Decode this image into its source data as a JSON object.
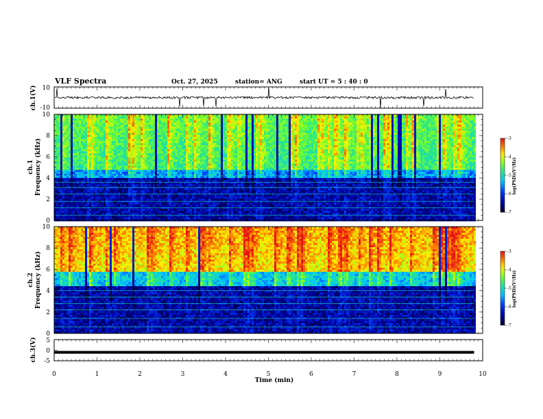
{
  "header": {
    "title": "VLF Spectra",
    "date": "Oct. 27, 2025",
    "station": "station= ANG",
    "start_ut": "start  UT  =   5  : 40 :  0"
  },
  "chart_data": [
    {
      "type": "line",
      "panel": "ch1-timeseries",
      "ylabel": "ch.1(V)",
      "ylim": [
        -10,
        10
      ],
      "ytick_labels": [
        "10",
        "-10"
      ],
      "baseline": 0,
      "xlim": [
        0,
        10
      ],
      "xtick_labels": [
        "0",
        "1",
        "2",
        "3",
        "4",
        "5",
        "6",
        "7",
        "8",
        "9",
        "10"
      ],
      "data_extent_min": 9.8,
      "color": "#000000"
    },
    {
      "type": "heatmap",
      "panel": "ch1-spectrogram",
      "ylabel": "ch.1",
      "ylabel2": "Frequency  (kHz)",
      "ylim": [
        0,
        10
      ],
      "ytick_labels": [
        "0",
        "2",
        "4",
        "6",
        "8",
        "10"
      ],
      "xlim": [
        0,
        10
      ],
      "data_extent_min": 9.8,
      "colorbar": {
        "label": "log(PSD)(V²/Hz)",
        "range": [
          -7,
          -3
        ],
        "tick_labels": [
          "-3",
          "-4",
          "-5",
          "-6",
          "-7"
        ]
      }
    },
    {
      "type": "heatmap",
      "panel": "ch2-spectrogram",
      "ylabel": "ch.2",
      "ylabel2": "Frequency  (kHz)",
      "ylim": [
        0,
        10
      ],
      "ytick_labels": [
        "0",
        "2",
        "4",
        "6",
        "8",
        "10"
      ],
      "xlim": [
        0,
        10
      ],
      "data_extent_min": 9.8,
      "colorbar": {
        "label": "log(PSD)(V²/Hz)",
        "range": [
          -7,
          -3
        ],
        "tick_labels": [
          "-3",
          "-4",
          "-5",
          "-6",
          "-7"
        ]
      }
    },
    {
      "type": "line",
      "panel": "ch3-timeseries",
      "ylabel": "ch.3(V)",
      "ylim": [
        -5,
        5
      ],
      "ytick_labels": [
        "5",
        "0",
        "-5"
      ],
      "constant_value": -1,
      "xlim": [
        0,
        10
      ],
      "xtick_labels": [
        "0",
        "1",
        "2",
        "3",
        "4",
        "5",
        "6",
        "7",
        "8",
        "9",
        "10"
      ],
      "xlabel": "Time  (min)",
      "data_extent_min": 9.8,
      "color": "#000000"
    }
  ]
}
